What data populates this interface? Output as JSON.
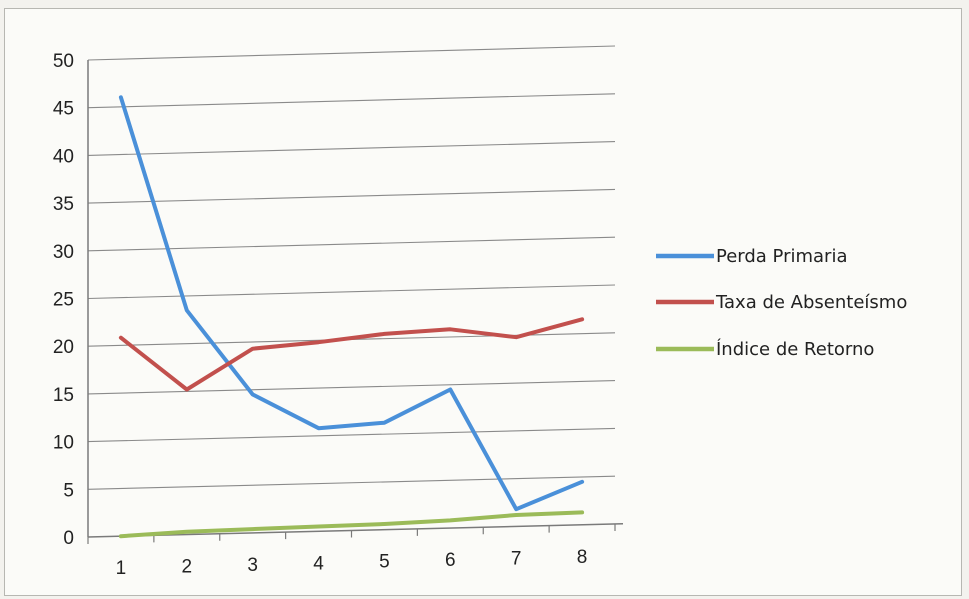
{
  "chart_data": {
    "type": "line",
    "title": "",
    "xlabel": "",
    "ylabel": "",
    "x": [
      1,
      2,
      3,
      4,
      5,
      6,
      7,
      8
    ],
    "x_tick_labels": [
      "1",
      "2",
      "3",
      "4",
      "5",
      "6",
      "7",
      "8"
    ],
    "y_tick_labels": [
      "0",
      "5",
      "10",
      "15",
      "20",
      "25",
      "30",
      "35",
      "40",
      "45",
      "50"
    ],
    "ylim": [
      0,
      50
    ],
    "grid": "horizontal",
    "legend_position": "right",
    "series": [
      {
        "name": "Perda Primaria",
        "color": "#4a90d9",
        "values": [
          46,
          23.5,
          14.5,
          10.8,
          11.2,
          14.5,
          1.8,
          4.5
        ]
      },
      {
        "name": "Taxa de Absenteísmo",
        "color": "#c2504d",
        "values": [
          20.8,
          15.2,
          19.3,
          19.8,
          20.5,
          20.8,
          19.8,
          21.5
        ]
      },
      {
        "name": "Índice de Retorno",
        "color": "#9bbb59",
        "values": [
          0,
          0.3,
          0.4,
          0.5,
          0.6,
          0.8,
          1.2,
          1.3
        ]
      }
    ]
  }
}
